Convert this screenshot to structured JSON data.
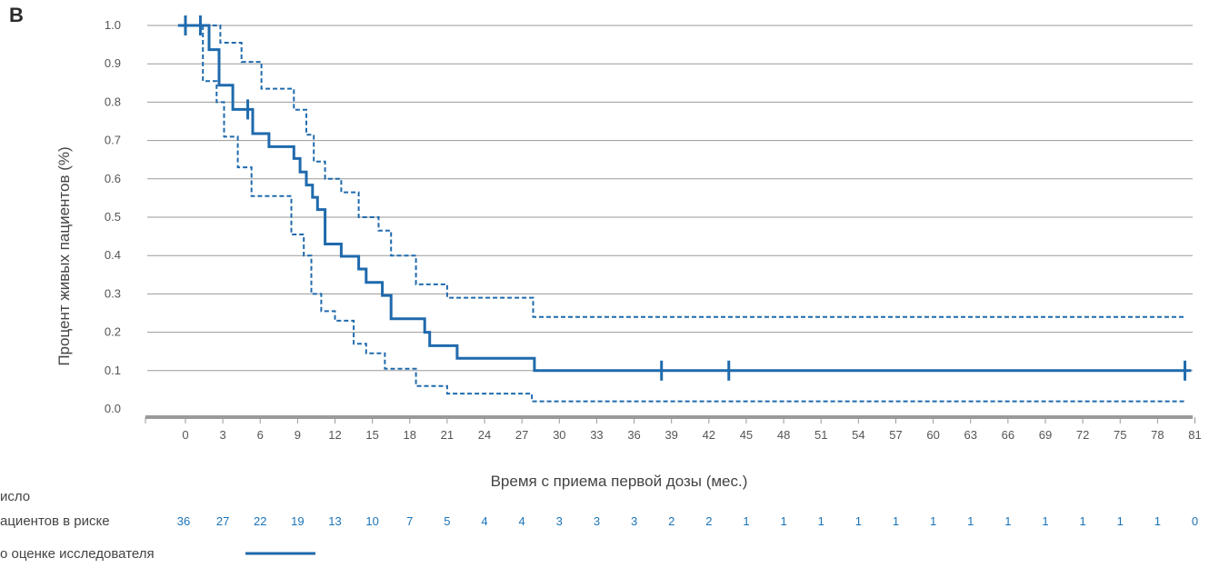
{
  "panel_label": "B",
  "colors": {
    "series": "#1f6aad",
    "grid": "#9a9a9a",
    "axis": "#9a9a9a",
    "risk_numbers": "#1a73b8"
  },
  "risk_table": {
    "label_line1": "исло",
    "label_line2": "ациентов в риске",
    "values": [
      36,
      27,
      22,
      19,
      13,
      10,
      7,
      5,
      4,
      4,
      3,
      3,
      3,
      2,
      2,
      1,
      1,
      1,
      1,
      1,
      1,
      1,
      1,
      1,
      1,
      1,
      1,
      0
    ]
  },
  "legend": {
    "label": "о оценке исследователя"
  },
  "chart_data": {
    "type": "line",
    "step": true,
    "xlabel": "Время с приема первой дозы (мес.)",
    "ylabel": "Процент живых пациентов (%)",
    "xlim": [
      -3.5,
      81
    ],
    "ylim": [
      0,
      1
    ],
    "x_ticks": [
      0,
      3,
      6,
      9,
      12,
      15,
      18,
      21,
      24,
      27,
      30,
      33,
      36,
      39,
      42,
      45,
      48,
      51,
      54,
      57,
      60,
      63,
      66,
      69,
      72,
      75,
      78,
      81
    ],
    "y_ticks": [
      "0.0",
      "0.1",
      "0.2",
      "0.3",
      "0.4",
      "0.5",
      "0.6",
      "0.7",
      "0.8",
      "0.9",
      "1.0"
    ],
    "grid": true,
    "series": [
      {
        "style": "solid",
        "x": [
          -0.6,
          1.9,
          1.9,
          2.7,
          2.7,
          3.8,
          3.8,
          5.4,
          5.4,
          6.7,
          6.7,
          8.7,
          8.7,
          9.2,
          9.2,
          9.7,
          9.7,
          10.2,
          10.2,
          10.6,
          10.6,
          11.2,
          11.2,
          12.5,
          12.5,
          13.9,
          13.9,
          14.5,
          14.5,
          15.8,
          15.8,
          16.5,
          16.5,
          19.2,
          19.2,
          19.6,
          19.6,
          21.8,
          21.8,
          28.0,
          28.0,
          80.7
        ],
        "y": [
          1.0,
          1.0,
          0.937,
          0.937,
          0.844,
          0.844,
          0.781,
          0.781,
          0.718,
          0.718,
          0.684,
          0.684,
          0.653,
          0.653,
          0.618,
          0.618,
          0.584,
          0.584,
          0.552,
          0.552,
          0.52,
          0.52,
          0.43,
          0.43,
          0.398,
          0.398,
          0.365,
          0.365,
          0.33,
          0.33,
          0.296,
          0.296,
          0.235,
          0.235,
          0.2,
          0.2,
          0.165,
          0.165,
          0.132,
          0.132,
          0.1,
          0.1
        ],
        "censored": [
          {
            "x": 0.0,
            "y": 1.0
          },
          {
            "x": 1.2,
            "y": 1.0
          },
          {
            "x": 5.0,
            "y": 0.781
          },
          {
            "x": 38.2,
            "y": 0.1
          },
          {
            "x": 43.6,
            "y": 0.1
          },
          {
            "x": 80.2,
            "y": 0.1
          }
        ]
      },
      {
        "style": "dashed",
        "x": [
          1.0,
          2.8,
          2.8,
          4.5,
          4.5,
          6.1,
          6.1,
          8.7,
          8.7,
          9.7,
          9.7,
          10.3,
          10.3,
          11.2,
          11.2,
          12.5,
          12.5,
          13.9,
          13.9,
          15.5,
          15.5,
          16.5,
          16.5,
          18.5,
          18.5,
          21.0,
          21.0,
          27.9,
          27.9,
          80.2
        ],
        "y": [
          1.0,
          1.0,
          0.955,
          0.955,
          0.905,
          0.905,
          0.835,
          0.835,
          0.78,
          0.78,
          0.715,
          0.715,
          0.645,
          0.645,
          0.6,
          0.6,
          0.565,
          0.565,
          0.5,
          0.5,
          0.465,
          0.465,
          0.4,
          0.4,
          0.325,
          0.325,
          0.29,
          0.29,
          0.24,
          0.24
        ]
      },
      {
        "style": "dashed",
        "x": [
          1.4,
          1.4,
          2.5,
          2.5,
          3.1,
          3.1,
          4.2,
          4.2,
          5.3,
          5.3,
          8.5,
          8.5,
          9.5,
          9.5,
          10.1,
          10.1,
          10.9,
          10.9,
          12.0,
          12.0,
          13.5,
          13.5,
          14.5,
          14.5,
          16.0,
          16.0,
          18.5,
          18.5,
          21.0,
          21.0,
          27.8,
          27.8,
          80.2
        ],
        "y": [
          1.0,
          0.855,
          0.855,
          0.8,
          0.8,
          0.71,
          0.71,
          0.63,
          0.63,
          0.555,
          0.555,
          0.455,
          0.455,
          0.4,
          0.4,
          0.3,
          0.3,
          0.255,
          0.255,
          0.23,
          0.23,
          0.17,
          0.17,
          0.145,
          0.145,
          0.105,
          0.105,
          0.06,
          0.06,
          0.04,
          0.04,
          0.02,
          0.02
        ]
      }
    ]
  }
}
